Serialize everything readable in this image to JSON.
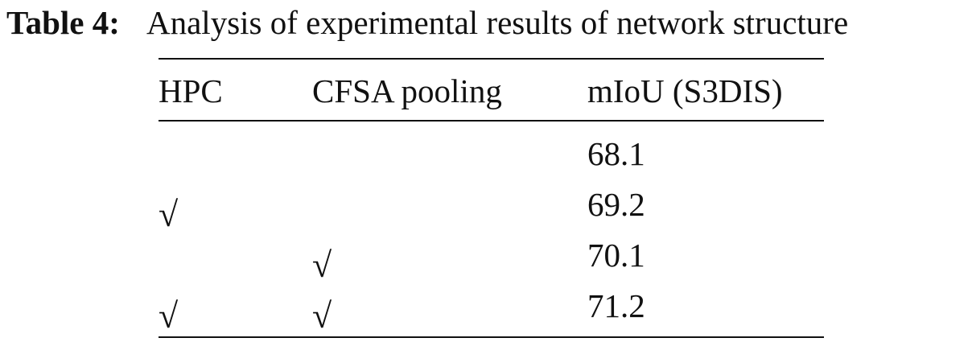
{
  "caption": {
    "label": "Table 4:",
    "text": "Analysis of experimental results of network structure"
  },
  "table": {
    "header": [
      "HPC",
      "CFSA pooling",
      "mIoU (S3DIS)"
    ],
    "rows": [
      [
        null,
        null,
        68.1
      ],
      [
        "√",
        null,
        69.2
      ],
      [
        null,
        "√",
        70.1
      ],
      [
        "√",
        "√",
        71.2
      ]
    ]
  }
}
